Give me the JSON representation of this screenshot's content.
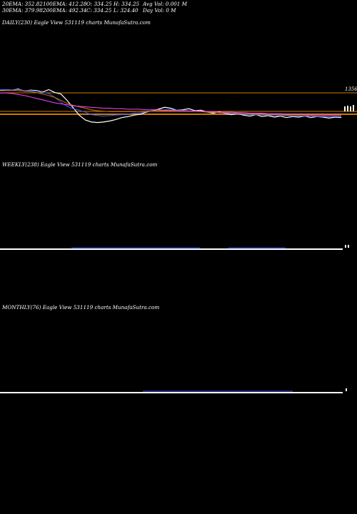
{
  "header": {
    "row1": [
      {
        "key": "ema20",
        "text": "20EMA: 352.82"
      },
      {
        "key": "ema100",
        "text": "100EMA: 412.28"
      },
      {
        "key": "open",
        "text": "O: 334.25"
      },
      {
        "key": "high",
        "text": "H: 334.25"
      },
      {
        "key": "avgvol",
        "text": "Avg Vol: 0.001 M"
      }
    ],
    "row2": [
      {
        "key": "ema30",
        "text": "30EMA: 379.98"
      },
      {
        "key": "ema200",
        "text": "200EMA: 492.34"
      },
      {
        "key": "close",
        "text": "C: 334.25"
      },
      {
        "key": "low",
        "text": "L: 324.40"
      },
      {
        "key": "dayvol",
        "text": "Day Vol: 0  M"
      }
    ]
  },
  "panels": {
    "daily": {
      "label": "DAILY(230) Eagle   View  531119 charts MunafaSutra.com"
    },
    "weekly": {
      "label": "WEEKLY(238) Eagle   View  531119 charts MunafaSutra.com"
    },
    "monthly": {
      "label": "MONTHLY(76) Eagle   View  531119 charts MunafaSutra.com"
    }
  },
  "chart_data": [
    {
      "type": "line",
      "name": "daily",
      "y_labels": [
        "1356"
      ],
      "horizontal_lines_color": "#cc7a00",
      "series": [
        {
          "color": "#ffffff",
          "values": [
            1350,
            1352,
            1351,
            1353,
            1349,
            1351,
            1350,
            1347,
            1352,
            1346,
            1343,
            1330,
            1315,
            1300,
            1290,
            1286,
            1285,
            1286,
            1288,
            1291,
            1295,
            1297,
            1300,
            1302,
            1306,
            1309,
            1312,
            1316,
            1314,
            1310,
            1311,
            1313,
            1309,
            1310,
            1306,
            1304,
            1307,
            1303,
            1301,
            1303,
            1300,
            1298,
            1301,
            1297,
            1299,
            1296,
            1298,
            1295,
            1297,
            1296,
            1298,
            1295,
            1297,
            1296,
            1294,
            1296,
            1295
          ]
        },
        {
          "color": "#3355ff",
          "values": [
            1352,
            1352,
            1351,
            1352,
            1350,
            1350,
            1349,
            1346,
            1344,
            1336,
            1326,
            1318,
            1313,
            1310,
            1306,
            1301,
            1299,
            1298,
            1299,
            1300,
            1301,
            1302,
            1304,
            1305,
            1307,
            1308,
            1309,
            1311,
            1311,
            1310,
            1310,
            1309,
            1308,
            1307,
            1306,
            1306,
            1305,
            1304,
            1303,
            1303,
            1302,
            1301,
            1301,
            1300,
            1300,
            1299,
            1299,
            1299,
            1298,
            1298,
            1298,
            1298,
            1297,
            1297,
            1297,
            1297,
            1297
          ]
        },
        {
          "color": "#cc7a00",
          "values": [
            1350,
            1350,
            1350,
            1350,
            1349,
            1348,
            1346,
            1343,
            1340,
            1336,
            1330,
            1324,
            1320,
            1317,
            1314,
            1311,
            1309,
            1308,
            1307,
            1307,
            1307,
            1307,
            1307,
            1308,
            1308,
            1309,
            1309,
            1309,
            1309,
            1309,
            1309,
            1308,
            1308,
            1307,
            1306,
            1306,
            1305,
            1305,
            1304,
            1304,
            1303,
            1303,
            1302,
            1302,
            1301,
            1301,
            1301,
            1300,
            1300,
            1300,
            1300,
            1299,
            1299,
            1299,
            1299,
            1299,
            1299
          ]
        },
        {
          "color": "#ff44ff",
          "values": [
            1345,
            1345,
            1344,
            1342,
            1340,
            1337,
            1334,
            1331,
            1328,
            1325,
            1323,
            1321,
            1319,
            1318,
            1317,
            1316,
            1315,
            1314,
            1314,
            1313,
            1313,
            1312,
            1312,
            1312,
            1311,
            1311,
            1311,
            1310,
            1310,
            1309,
            1309,
            1308,
            1308,
            1308,
            1307,
            1307,
            1306,
            1306,
            1306,
            1305,
            1305,
            1304,
            1304,
            1304,
            1303,
            1303,
            1303,
            1302,
            1302,
            1302,
            1302,
            1301,
            1301,
            1301,
            1301,
            1301,
            1301
          ]
        }
      ]
    },
    {
      "type": "line",
      "name": "weekly",
      "y_labels": []
    },
    {
      "type": "line",
      "name": "monthly",
      "y_labels": []
    }
  ]
}
